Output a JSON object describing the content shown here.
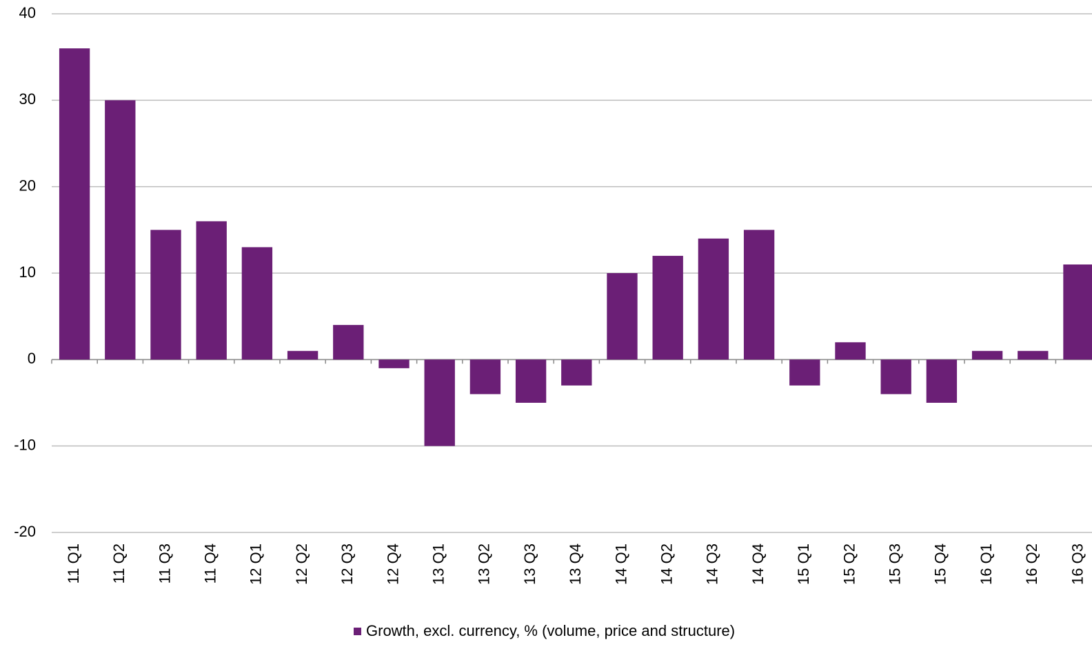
{
  "chart_data": {
    "type": "bar",
    "categories": [
      "11 Q1",
      "11 Q2",
      "11 Q3",
      "11 Q4",
      "12 Q1",
      "12 Q2",
      "12 Q3",
      "12 Q4",
      "13 Q1",
      "13 Q2",
      "13 Q3",
      "13 Q4",
      "14 Q1",
      "14 Q2",
      "14 Q3",
      "14 Q4",
      "15 Q1",
      "15 Q2",
      "15 Q3",
      "15 Q4",
      "16 Q1",
      "16 Q2",
      "16 Q3"
    ],
    "series": [
      {
        "name": "Growth, excl. currency, % (volume, price and structure)",
        "color": "#6b1f76",
        "values": [
          36,
          30,
          15,
          16,
          13,
          1,
          4,
          -1,
          -10,
          -4,
          -5,
          -3,
          10,
          12,
          14,
          15,
          -3,
          2,
          -4,
          -5,
          1,
          1,
          11
        ]
      }
    ],
    "ylim": [
      -20,
      40
    ],
    "yticks": [
      -20,
      -10,
      0,
      10,
      20,
      30,
      40
    ],
    "grid": true,
    "legend": "bottom"
  }
}
